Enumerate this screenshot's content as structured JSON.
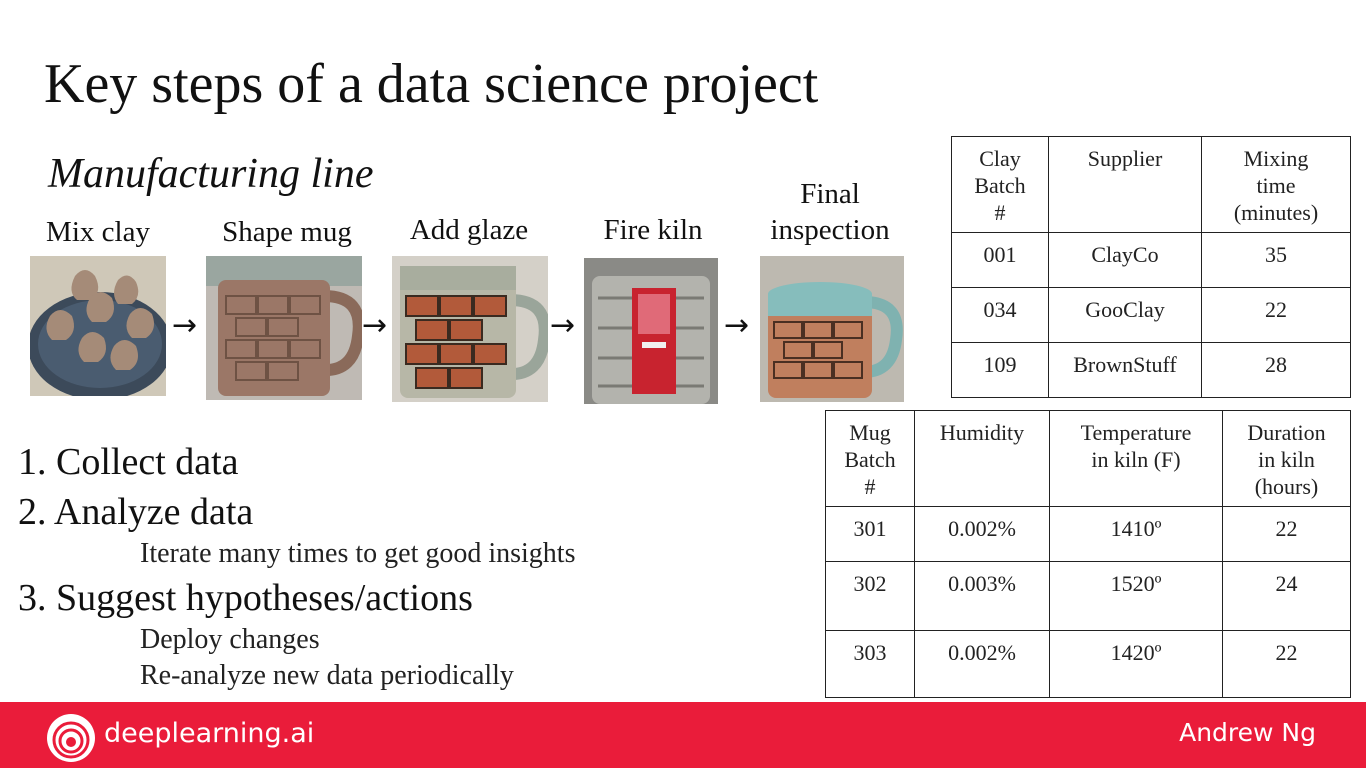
{
  "slide": {
    "title": "Key steps of a data science project",
    "subtitle": "Manufacturing line"
  },
  "process": [
    {
      "label": "Mix clay"
    },
    {
      "label": "Shape mug"
    },
    {
      "label": "Add glaze"
    },
    {
      "label": "Fire kiln"
    },
    {
      "label": "Final inspection",
      "line1": "Final",
      "line2": "inspection"
    }
  ],
  "clay_table": {
    "headers": [
      [
        "Clay",
        "Batch",
        "#"
      ],
      [
        "Supplier"
      ],
      [
        "Mixing",
        "time",
        "(minutes)"
      ]
    ],
    "rows": [
      [
        "001",
        "ClayCo",
        "35"
      ],
      [
        "034",
        "GooClay",
        "22"
      ],
      [
        "109",
        "BrownStuff",
        "28"
      ]
    ]
  },
  "mug_table": {
    "headers": [
      [
        "Mug",
        "Batch",
        "#"
      ],
      [
        "Humidity"
      ],
      [
        "Temperature",
        "in kiln (F)"
      ],
      [
        "Duration",
        "in kiln",
        "(hours)"
      ]
    ],
    "rows": [
      [
        "301",
        "0.002%",
        "1410º",
        "22"
      ],
      [
        "302",
        "0.003%",
        "1520º",
        "24"
      ],
      [
        "303",
        "0.002%",
        "1420º",
        "22"
      ]
    ]
  },
  "steps": [
    {
      "text": "1.  Collect data"
    },
    {
      "text": "2.  Analyze data"
    },
    {
      "text": "3.  Suggest hypotheses/actions"
    }
  ],
  "substeps": {
    "analyze": "Iterate many times to get good insights",
    "deploy": "Deploy changes",
    "reanalyze": "Re-analyze new data periodically"
  },
  "footer": {
    "brand": "deeplearning.ai",
    "author": "Andrew Ng",
    "color": "#ea1c3a"
  }
}
